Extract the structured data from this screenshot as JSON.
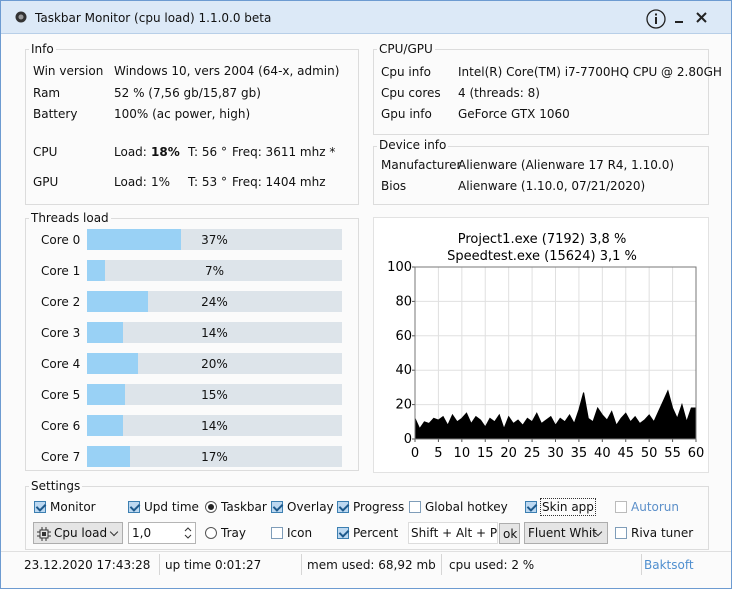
{
  "window": {
    "title": "Taskbar Monitor (cpu load) 1.1.0.0 beta"
  },
  "info": {
    "title": "Info",
    "rows": [
      [
        "Win version",
        "Windows 10, vers 2004 (64-x, admin)"
      ],
      [
        "Ram",
        "52 % (7,56 gb/15,87 gb)"
      ],
      [
        "Battery",
        "100% (ac power, high)"
      ]
    ],
    "cpu": {
      "label": "CPU",
      "load_label": "Load:",
      "load": "18%",
      "temp": "T: 56 °",
      "freq": "Freq:  3611 mhz *"
    },
    "gpu": {
      "label": "GPU",
      "load_label": "Load:",
      "load": "1%",
      "temp": "T: 53 °",
      "freq": "Freq:  1404 mhz"
    }
  },
  "cpu_gpu": {
    "title": "CPU/GPU",
    "rows": [
      [
        "Cpu info",
        "Intel(R) Core(TM) i7-7700HQ CPU @ 2.80GH"
      ],
      [
        "Cpu cores",
        "4 (threads: 8)"
      ],
      [
        "Gpu info",
        "GeForce GTX 1060"
      ]
    ]
  },
  "device_info": {
    "title": "Device info",
    "rows": [
      [
        "Manufacturer",
        "Alienware (Alienware 17 R4, 1.10.0)"
      ],
      [
        "Bios",
        "Alienware (1.10.0, 07/21/2020)"
      ]
    ]
  },
  "threads": {
    "title": "Threads load",
    "cores": [
      "Core 0",
      "Core 1",
      "Core 2",
      "Core 3",
      "Core 4",
      "Core 5",
      "Core 6",
      "Core 7"
    ],
    "values": [
      37,
      7,
      24,
      14,
      20,
      15,
      14,
      17
    ],
    "value_labels": [
      "37%",
      "7%",
      "24%",
      "14%",
      "20%",
      "15%",
      "14%",
      "17%"
    ],
    "max": 100,
    "color": "#99d1f5",
    "track_color": "#dde4ea"
  },
  "chart_data": {
    "type": "area",
    "title": "Project1.exe (7192) 3,8 %",
    "subtitle": "Speedtest.exe (15624) 3,1 %",
    "x": [
      0,
      1,
      2,
      3,
      4,
      5,
      6,
      7,
      8,
      9,
      10,
      11,
      12,
      13,
      14,
      15,
      16,
      17,
      18,
      19,
      20,
      21,
      22,
      23,
      24,
      25,
      26,
      27,
      28,
      29,
      30,
      31,
      32,
      33,
      34,
      35,
      36,
      37,
      38,
      39,
      40,
      41,
      42,
      43,
      44,
      45,
      46,
      47,
      48,
      49,
      50,
      51,
      52,
      53,
      54,
      55,
      56,
      57,
      58,
      59,
      60
    ],
    "values": [
      12,
      6,
      10,
      9,
      12,
      11,
      13,
      8,
      14,
      10,
      12,
      15,
      9,
      13,
      11,
      7,
      12,
      10,
      14,
      6,
      13,
      9,
      11,
      8,
      12,
      10,
      15,
      9,
      11,
      13,
      8,
      12,
      10,
      14,
      9,
      17,
      27,
      12,
      10,
      18,
      14,
      11,
      16,
      8,
      12,
      15,
      10,
      13,
      9,
      11,
      14,
      10,
      16,
      22,
      28,
      18,
      12,
      20,
      10,
      18,
      18
    ],
    "color": "#000000",
    "xlim": [
      0,
      60
    ],
    "ylim": [
      0,
      100
    ],
    "xticks": [
      0,
      5,
      10,
      15,
      20,
      25,
      30,
      35,
      40,
      45,
      50,
      55,
      60
    ],
    "yticks": [
      0,
      20,
      40,
      60,
      80,
      100
    ],
    "grid": true
  },
  "settings": {
    "title": "Settings",
    "checkboxes": [
      {
        "label": "Monitor",
        "checked": true
      },
      {
        "label": "Upd time",
        "checked": true
      },
      {
        "label": "Overlay",
        "checked": true
      },
      {
        "label": "Progress",
        "checked": true
      },
      {
        "label": "Global hotkey",
        "checked": false
      },
      {
        "label": "Skin app",
        "checked": true
      },
      {
        "label": "Autorun",
        "checked": false
      },
      {
        "label": "Icon",
        "checked": false
      },
      {
        "label": "Percent",
        "checked": true
      },
      {
        "label": "Riva tuner",
        "checked": false
      }
    ],
    "radios": [
      {
        "label": "Taskbar",
        "selected": true
      },
      {
        "label": "Tray",
        "selected": false
      }
    ],
    "monitor_select": "Cpu load",
    "interval": "1,0",
    "hotkey": "Shift + Alt + P",
    "hotkey_button": "ok",
    "skin_select": "Fluent Whit"
  },
  "status": {
    "datetime": "23.12.2020   17:43:28",
    "uptime": "up time 0:01:27",
    "mem": "mem used: 68,92 mb",
    "cpu": "cpu used: 2 %",
    "link": "Baktsoft"
  }
}
